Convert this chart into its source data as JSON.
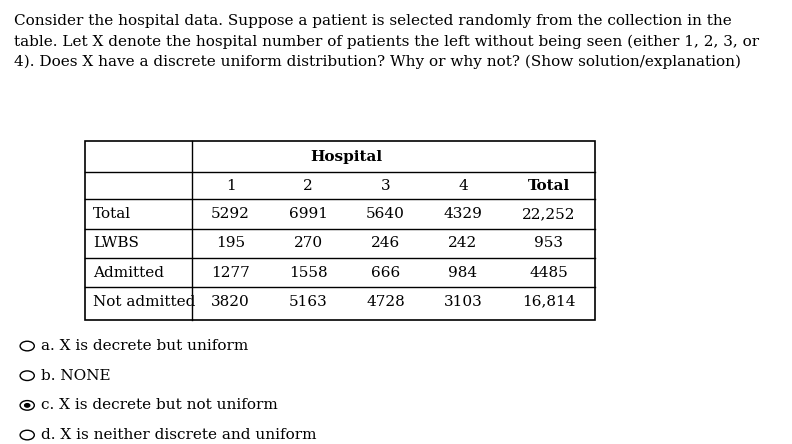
{
  "question_text": "Consider the hospital data. Suppose a patient is selected randomly from the collection in the\ntable. Let X denote the hospital number of patients the left without being seen (either 1, 2, 3, or\n4). Does X have a discrete uniform distribution? Why or why not? (Show solution/explanation)",
  "table_header_main": "Hospital",
  "table_col_headers": [
    "",
    "1",
    "2",
    "3",
    "4",
    "Total"
  ],
  "table_rows": [
    [
      "Total",
      "5292",
      "6991",
      "5640",
      "4329",
      "22,252"
    ],
    [
      "LWBS",
      "195",
      "270",
      "246",
      "242",
      "953"
    ],
    [
      "Admitted",
      "1277",
      "1558",
      "666",
      "984",
      "4485"
    ],
    [
      "Not admitted",
      "3820",
      "5163",
      "4728",
      "3103",
      "16,814"
    ]
  ],
  "options": [
    "a. X is decrete but uniform",
    "b. NONE",
    "c. X is decrete but not uniform",
    "d. X is neither discrete and uniform"
  ],
  "selected_option": "c",
  "bg_color": "#ffffff",
  "text_color": "#000000",
  "table_border_color": "#000000",
  "font_size_question": 11,
  "font_size_table": 11,
  "font_size_options": 11
}
